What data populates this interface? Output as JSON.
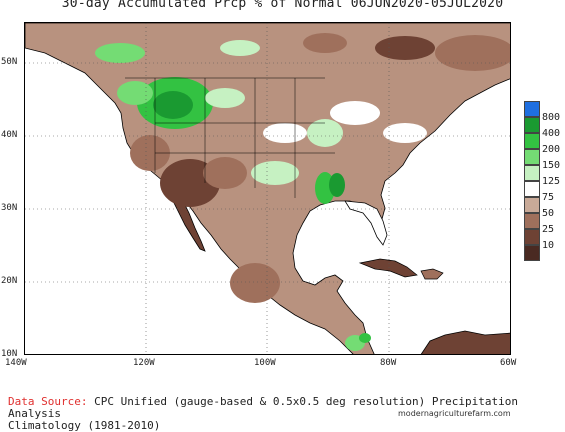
{
  "title": "30-day Accumulated Prcp % of Normal 06JUN2020-05JUL2020",
  "lat_labels": [
    "50N",
    "40N",
    "30N",
    "20N",
    "10N"
  ],
  "lon_labels": [
    "140W",
    "120W",
    "100W",
    "80W",
    "60W"
  ],
  "legend": {
    "labels": [
      "800",
      "400",
      "200",
      "150",
      "125",
      "75",
      "50",
      "25",
      "10"
    ],
    "colors": [
      "#1f6fe0",
      "#1a9a31",
      "#33c242",
      "#74dc74",
      "#c6f1c2",
      "#ffffff",
      "#c9aa98",
      "#9f705c",
      "#6e4234",
      "#4a2a22"
    ]
  },
  "footer": {
    "source_label": "Data Source:",
    "source_text": "CPC Unified (gauge-based & 0.5x0.5 deg resolution) Precipitation Analysis",
    "climatology": "Climatology (1981-2010)"
  },
  "watermark": "modernagriculturefarm.com"
}
